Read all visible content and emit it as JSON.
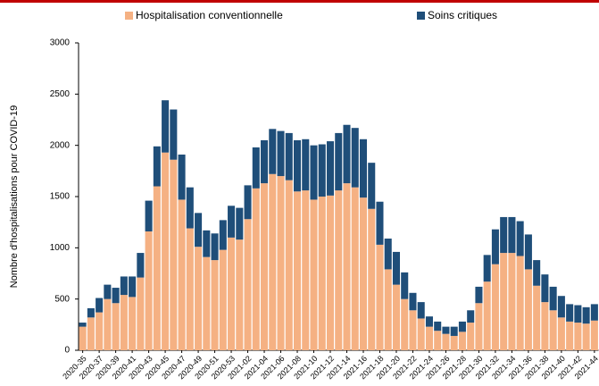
{
  "chart_data": {
    "type": "stacked_bar",
    "y_label": "Nombre d'hospitalisations pour COVID-19",
    "categories": [
      "2020-35",
      null,
      "2020-37",
      null,
      "2020-39",
      null,
      "2020-41",
      null,
      "2020-43",
      null,
      "2020-45",
      null,
      "2020-47",
      null,
      "2020-49",
      null,
      "2020-51",
      null,
      "2020-53",
      null,
      "2021-02",
      null,
      "2021-04",
      null,
      "2021-06",
      null,
      "2021-08",
      null,
      "2021-10",
      null,
      "2021-12",
      null,
      "2021-14",
      null,
      "2021-16",
      null,
      "2021-18",
      null,
      "2021-20",
      null,
      "2021-22",
      null,
      "2021-24",
      null,
      "2021-26",
      null,
      "2021-28",
      null,
      "2021-30",
      null,
      "2021-32",
      null,
      "2021-34",
      null,
      "2021-36",
      null,
      "2021-38",
      null,
      "2021-40",
      null,
      "2021-42",
      null,
      "2021-44"
    ],
    "series": [
      {
        "name": "Hospitalisation conventionnelle",
        "color": "#f5b183",
        "values": [
          230,
          320,
          370,
          500,
          460,
          540,
          520,
          710,
          1160,
          1600,
          1930,
          1860,
          1470,
          1190,
          1010,
          910,
          880,
          980,
          1100,
          1080,
          1280,
          1580,
          1630,
          1720,
          1700,
          1660,
          1550,
          1560,
          1470,
          1500,
          1510,
          1560,
          1630,
          1590,
          1490,
          1380,
          1030,
          790,
          640,
          500,
          390,
          310,
          230,
          190,
          160,
          140,
          180,
          270,
          460,
          670,
          840,
          950,
          950,
          920,
          790,
          630,
          470,
          390,
          320,
          280,
          270,
          260,
          290
        ]
      },
      {
        "name": "Soins critiques",
        "color": "#1f4e79",
        "values": [
          40,
          90,
          140,
          140,
          150,
          180,
          200,
          240,
          300,
          390,
          510,
          490,
          440,
          400,
          330,
          260,
          260,
          290,
          310,
          310,
          330,
          400,
          420,
          440,
          440,
          460,
          500,
          500,
          530,
          510,
          530,
          560,
          570,
          580,
          570,
          450,
          420,
          300,
          320,
          260,
          170,
          160,
          100,
          90,
          70,
          90,
          100,
          120,
          160,
          260,
          340,
          350,
          350,
          340,
          340,
          250,
          270,
          230,
          210,
          170,
          170,
          160,
          160
        ]
      }
    ],
    "ylim": [
      0,
      3000
    ],
    "yticks": [
      0,
      500,
      1000,
      1500,
      2000,
      2500,
      3000
    ]
  }
}
